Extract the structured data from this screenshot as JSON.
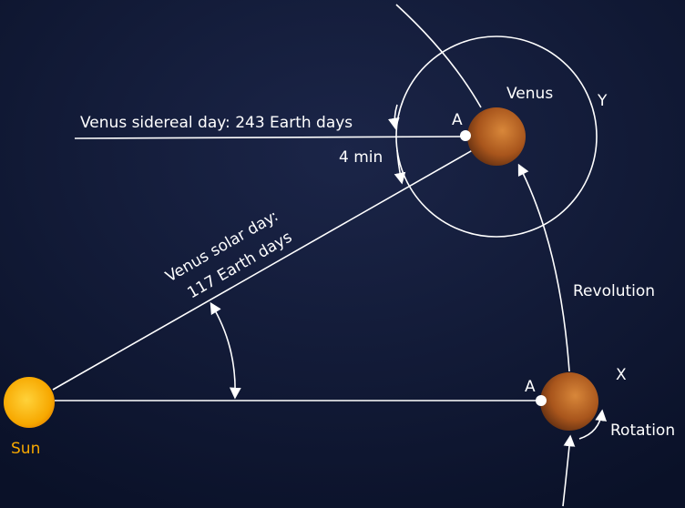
{
  "labels": {
    "venus": "Venus",
    "y_point": "Y",
    "sidereal_day": "Venus sidereal day: 243 Earth days",
    "point_a_top": "A",
    "four_min": "4 min",
    "solar_day_line1": "Venus solar day:",
    "solar_day_line2": "117 Earth days",
    "revolution": "Revolution",
    "point_a_bottom": "A",
    "x_point": "X",
    "rotation": "Rotation",
    "sun": "Sun"
  }
}
